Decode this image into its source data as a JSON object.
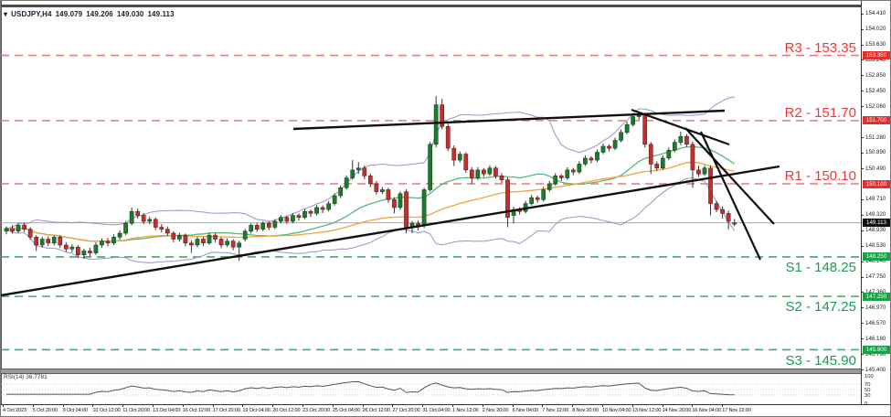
{
  "header": {
    "marker": "▾",
    "symbol_period": "USDJPY,H4",
    "open": "149.079",
    "high": "149.206",
    "low": "149.030",
    "close": "149.113"
  },
  "colors": {
    "candle_up": "#1f7a2d",
    "candle_down": "#c13030",
    "wick": "#333333",
    "bollinger": "#9494cc",
    "ma_fast": "#57b87f",
    "ma_slow": "#f0a43c",
    "trendline": "#111111",
    "resistance_line": "#e37c7c",
    "support_line": "#4fa370",
    "resistance_badge": "#e03030",
    "support_badge": "#1e9e46",
    "current_badge": "#111111",
    "current_price_line": "#aaaaaa",
    "rsi_line": "#555555"
  },
  "levels": {
    "list": [
      {
        "label": "R3 - 153.35",
        "price": 153.35,
        "kind": "r"
      },
      {
        "label": "R2 - 151.70",
        "price": 151.7,
        "kind": "r"
      },
      {
        "label": "R1 - 150.10",
        "price": 150.1,
        "kind": "r"
      },
      {
        "label": "S1 - 148.25",
        "price": 148.25,
        "kind": "s"
      },
      {
        "label": "S2 - 147.25",
        "price": 147.25,
        "kind": "s"
      },
      {
        "label": "S3 - 145.90",
        "price": 145.9,
        "kind": "s"
      }
    ]
  },
  "axis": {
    "current_price": 149.113,
    "ticks": [
      "154.410",
      "154.020",
      "153.630",
      "153.240",
      "152.850",
      "152.450",
      "152.060",
      "151.280",
      "150.890",
      "150.490",
      "149.710",
      "149.320",
      "148.930",
      "148.530",
      "148.140",
      "147.750",
      "147.360",
      "146.970",
      "146.570",
      "146.180",
      "145.790",
      "145.400"
    ],
    "badges": [
      {
        "text": "153.350",
        "price": 153.35,
        "type": "resistance"
      },
      {
        "text": "151.700",
        "price": 151.7,
        "type": "resistance"
      },
      {
        "text": "150.100",
        "price": 150.1,
        "type": "resistance"
      },
      {
        "text": "149.113",
        "price": 149.113,
        "type": "current"
      },
      {
        "text": "148.250",
        "price": 148.25,
        "type": "support"
      },
      {
        "text": "147.250",
        "price": 147.25,
        "type": "support"
      },
      {
        "text": "145.900",
        "price": 145.9,
        "type": "support"
      }
    ]
  },
  "rsi": {
    "label": "RSI(14) 36.7781",
    "period": 14,
    "value": 36.7781,
    "scale": [
      {
        "text": "100",
        "v": 100
      },
      {
        "text": "70",
        "v": 70
      },
      {
        "text": "50",
        "v": 50
      },
      {
        "text": "30",
        "v": 30
      },
      {
        "text": "0",
        "v": 0
      }
    ],
    "gridlines": [
      70,
      50,
      30
    ]
  },
  "chart_data": {
    "type": "candlestick",
    "title": "USDJPY,H4",
    "timeframe": "H4",
    "ylim": [
      145.4,
      154.41
    ],
    "legend_position": "none",
    "grid": false,
    "time_labels": [
      "4 Oct 2023",
      "5 Oct 20:00",
      "9 Oct 04:00",
      "10 Oct 12:00",
      "11 Oct 20:00",
      "13 Oct 04:00",
      "16 Oct 12:00",
      "17 Oct 20:00",
      "19 Oct 04:00",
      "20 Oct 12:00",
      "23 Oct 20:00",
      "25 Oct 04:00",
      "26 Oct 12:00",
      "27 Oct 20:00",
      "31 Oct 04:00",
      "1 Nov 12:00",
      "2 Nov 20:00",
      "6 Nov 04:00",
      "7 Nov 12:00",
      "8 Nov 20:00",
      "10 Nov 04:00",
      "13 Nov 12:00",
      "14 Nov 20:00",
      "16 Nov 04:00",
      "17 Nov 12:00"
    ],
    "overlays": {
      "bollinger": {
        "period": 20,
        "deviation": 2
      },
      "ma_fast": {
        "period": 20,
        "method": "sma"
      },
      "ma_slow": {
        "period": 45,
        "method": "sma"
      }
    },
    "trendlines": [
      {
        "name": "ascending-support",
        "x1": 0,
        "y1": 322,
        "x2": 852,
        "y2": 181,
        "w": 2.4
      },
      {
        "name": "peak-resistance",
        "x1": 320,
        "y1": 140,
        "x2": 792,
        "y2": 120,
        "w": 2.4
      },
      {
        "name": "descending-fan-1",
        "x1": 690,
        "y1": 119,
        "x2": 797,
        "y2": 157,
        "w": 2.2
      },
      {
        "name": "descending-fan-2",
        "x1": 749,
        "y1": 139,
        "x2": 846,
        "y2": 244,
        "w": 2.2
      },
      {
        "name": "descending-fan-3",
        "x1": 766,
        "y1": 143,
        "x2": 831,
        "y2": 283,
        "w": 2.2
      }
    ],
    "ohlc": [
      [
        148.9,
        149.02,
        148.82,
        148.97
      ],
      [
        148.97,
        149.05,
        148.84,
        148.9
      ],
      [
        148.9,
        149.1,
        148.85,
        149.05
      ],
      [
        149.05,
        149.12,
        148.88,
        148.95
      ],
      [
        148.95,
        149.0,
        148.68,
        148.75
      ],
      [
        148.75,
        148.8,
        148.4,
        148.55
      ],
      [
        148.55,
        148.76,
        148.48,
        148.7
      ],
      [
        148.7,
        148.77,
        148.52,
        148.6
      ],
      [
        148.6,
        148.8,
        148.54,
        148.75
      ],
      [
        148.75,
        148.8,
        148.48,
        148.55
      ],
      [
        148.55,
        148.62,
        148.38,
        148.45
      ],
      [
        148.45,
        148.57,
        148.36,
        148.5
      ],
      [
        148.5,
        148.55,
        148.22,
        148.3
      ],
      [
        148.3,
        148.46,
        148.2,
        148.4
      ],
      [
        148.4,
        148.48,
        148.26,
        148.35
      ],
      [
        148.35,
        148.62,
        148.3,
        148.55
      ],
      [
        148.55,
        148.72,
        148.48,
        148.65
      ],
      [
        148.65,
        148.73,
        148.52,
        148.6
      ],
      [
        148.6,
        148.82,
        148.55,
        148.75
      ],
      [
        148.75,
        148.92,
        148.68,
        148.85
      ],
      [
        148.85,
        149.16,
        148.8,
        149.1
      ],
      [
        149.1,
        149.5,
        149.05,
        149.4
      ],
      [
        149.4,
        149.47,
        149.22,
        149.3
      ],
      [
        149.3,
        149.36,
        149.08,
        149.15
      ],
      [
        149.15,
        149.27,
        149.08,
        149.2
      ],
      [
        149.2,
        149.25,
        148.93,
        149.0
      ],
      [
        149.0,
        149.08,
        148.87,
        148.95
      ],
      [
        148.95,
        149.02,
        148.78,
        148.85
      ],
      [
        148.85,
        148.9,
        148.62,
        148.7
      ],
      [
        148.7,
        148.86,
        148.64,
        148.8
      ],
      [
        148.8,
        148.84,
        148.52,
        148.6
      ],
      [
        148.6,
        148.67,
        148.35,
        148.55
      ],
      [
        148.55,
        148.76,
        148.5,
        148.7
      ],
      [
        148.7,
        148.75,
        148.52,
        148.6
      ],
      [
        148.6,
        148.86,
        148.55,
        148.8
      ],
      [
        148.8,
        148.85,
        148.62,
        148.7
      ],
      [
        148.7,
        148.75,
        148.47,
        148.55
      ],
      [
        148.55,
        148.72,
        148.5,
        148.65
      ],
      [
        148.65,
        148.7,
        148.42,
        148.5
      ],
      [
        148.5,
        148.66,
        148.15,
        148.6
      ],
      [
        148.7,
        148.96,
        148.64,
        148.9
      ],
      [
        148.9,
        149.1,
        148.84,
        149.05
      ],
      [
        149.05,
        149.11,
        148.88,
        148.95
      ],
      [
        148.95,
        149.15,
        148.9,
        149.1
      ],
      [
        149.1,
        149.16,
        148.93,
        149.0
      ],
      [
        149.0,
        149.21,
        148.95,
        149.15
      ],
      [
        149.15,
        149.31,
        149.1,
        149.25
      ],
      [
        149.25,
        149.3,
        149.08,
        149.15
      ],
      [
        149.15,
        149.36,
        149.1,
        149.3
      ],
      [
        149.3,
        149.35,
        149.17,
        149.25
      ],
      [
        149.25,
        149.46,
        149.2,
        149.4
      ],
      [
        149.4,
        149.45,
        149.26,
        149.35
      ],
      [
        149.35,
        149.56,
        149.3,
        149.5
      ],
      [
        149.5,
        149.55,
        149.36,
        149.45
      ],
      [
        149.45,
        149.66,
        149.4,
        149.6
      ],
      [
        149.6,
        149.86,
        149.55,
        149.8
      ],
      [
        149.8,
        150.06,
        149.74,
        150.0
      ],
      [
        150.0,
        150.31,
        149.95,
        150.25
      ],
      [
        150.25,
        150.7,
        150.2,
        150.45
      ],
      [
        150.45,
        150.65,
        150.35,
        150.5
      ],
      [
        150.5,
        150.56,
        150.22,
        150.3
      ],
      [
        150.3,
        150.36,
        150.02,
        150.1
      ],
      [
        150.1,
        150.17,
        149.83,
        149.9
      ],
      [
        149.9,
        150.02,
        149.84,
        149.95
      ],
      [
        149.95,
        150.0,
        149.62,
        149.7
      ],
      [
        149.7,
        149.76,
        149.35,
        149.5
      ],
      [
        149.5,
        149.91,
        149.44,
        149.85
      ],
      [
        149.9,
        149.96,
        148.85,
        149.0
      ],
      [
        149.0,
        149.16,
        148.85,
        149.1
      ],
      [
        149.1,
        149.17,
        148.92,
        149.05
      ],
      [
        149.05,
        150.0,
        148.98,
        149.95
      ],
      [
        149.95,
        151.16,
        149.9,
        151.1
      ],
      [
        151.1,
        152.32,
        151.02,
        152.1
      ],
      [
        152.1,
        152.25,
        151.48,
        151.55
      ],
      [
        151.55,
        151.62,
        150.93,
        151.0
      ],
      [
        151.0,
        151.07,
        150.55,
        150.7
      ],
      [
        150.7,
        150.92,
        150.64,
        150.85
      ],
      [
        150.85,
        150.9,
        150.38,
        150.45
      ],
      [
        150.45,
        150.52,
        150.1,
        150.25
      ],
      [
        150.25,
        150.52,
        150.2,
        150.45
      ],
      [
        150.45,
        150.5,
        150.28,
        150.35
      ],
      [
        150.35,
        150.57,
        150.3,
        150.5
      ],
      [
        150.5,
        150.55,
        150.23,
        150.3
      ],
      [
        150.3,
        150.37,
        150.12,
        150.2
      ],
      [
        150.2,
        150.26,
        149.0,
        149.25
      ],
      [
        149.3,
        149.52,
        149.1,
        149.45
      ],
      [
        149.45,
        149.51,
        149.32,
        149.4
      ],
      [
        149.4,
        149.67,
        149.35,
        149.6
      ],
      [
        149.6,
        149.82,
        149.55,
        149.75
      ],
      [
        149.75,
        149.8,
        149.62,
        149.7
      ],
      [
        149.7,
        150.02,
        149.65,
        149.95
      ],
      [
        149.95,
        150.17,
        149.9,
        150.1
      ],
      [
        150.1,
        150.37,
        150.05,
        150.3
      ],
      [
        150.3,
        150.35,
        150.17,
        150.25
      ],
      [
        150.25,
        150.52,
        150.2,
        150.45
      ],
      [
        150.45,
        150.5,
        150.32,
        150.4
      ],
      [
        150.4,
        150.67,
        150.35,
        150.6
      ],
      [
        150.6,
        150.82,
        150.55,
        150.75
      ],
      [
        150.75,
        150.8,
        150.62,
        150.7
      ],
      [
        150.7,
        150.97,
        150.65,
        150.9
      ],
      [
        150.9,
        151.12,
        150.85,
        151.05
      ],
      [
        151.05,
        151.1,
        150.92,
        151.0
      ],
      [
        151.0,
        151.27,
        150.95,
        151.2
      ],
      [
        151.2,
        151.47,
        151.15,
        151.4
      ],
      [
        151.4,
        151.67,
        151.35,
        151.6
      ],
      [
        151.6,
        151.87,
        151.55,
        151.8
      ],
      [
        151.8,
        151.92,
        151.72,
        151.85
      ],
      [
        151.85,
        151.9,
        151.02,
        151.1
      ],
      [
        151.1,
        151.16,
        150.35,
        150.6
      ],
      [
        150.6,
        150.67,
        150.42,
        150.5
      ],
      [
        150.5,
        150.82,
        150.45,
        150.75
      ],
      [
        150.75,
        151.02,
        150.7,
        150.95
      ],
      [
        150.95,
        151.22,
        150.9,
        151.15
      ],
      [
        151.15,
        151.42,
        151.08,
        151.3
      ],
      [
        151.3,
        151.36,
        151.03,
        151.1
      ],
      [
        151.1,
        151.17,
        150.0,
        150.45
      ],
      [
        150.45,
        150.56,
        150.28,
        150.35
      ],
      [
        150.35,
        150.57,
        150.3,
        150.5
      ],
      [
        150.5,
        150.56,
        149.3,
        149.6
      ],
      [
        149.6,
        149.67,
        149.38,
        149.45
      ],
      [
        149.45,
        149.52,
        149.22,
        149.35
      ],
      [
        149.35,
        149.42,
        148.95,
        149.15
      ],
      [
        149.079,
        149.206,
        149.03,
        149.113
      ]
    ]
  }
}
